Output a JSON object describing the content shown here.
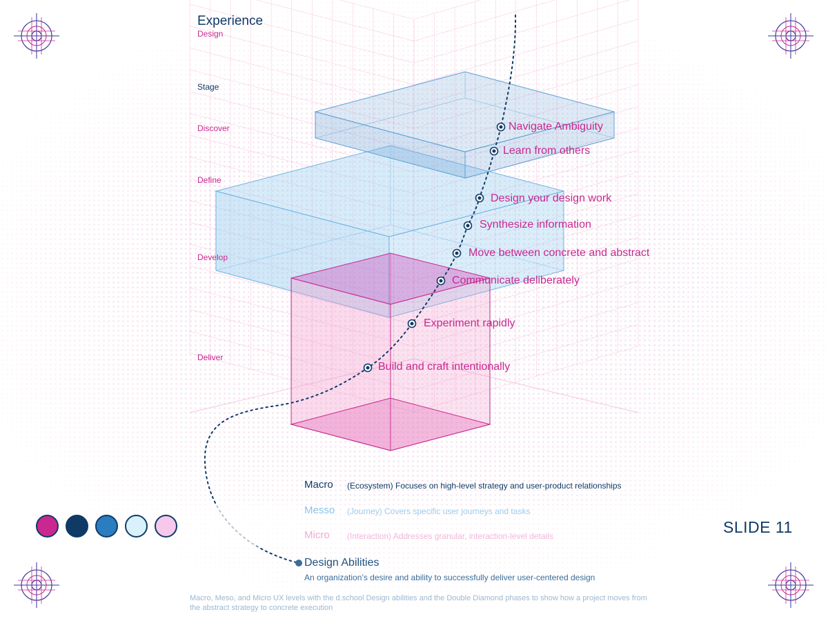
{
  "header": {
    "title": "Experience",
    "subtitle": "Design"
  },
  "stages": {
    "header": "Stage",
    "items": [
      "Discover",
      "Define",
      "Develop",
      "Deliver"
    ]
  },
  "abilities": [
    "Navigate Ambiguity",
    "Learn from others",
    "Design your design work",
    "Synthesize information",
    "Move between concrete and abstract",
    "Communicate deliberately",
    "Experiment rapidly",
    "Build and craft intentionally"
  ],
  "levels": [
    {
      "name": "Macro",
      "description": "(Ecosystem) Focuses on high-level strategy and user-product relationships",
      "color": "#0f3a66"
    },
    {
      "name": "Messo",
      "description": "(Journey) Covers specific user journeys and tasks",
      "color": "#8cc3ea"
    },
    {
      "name": "Micro",
      "description": "(Interaction) Addresses granular, interaction-level details",
      "color": "#f2a9d3"
    }
  ],
  "design_abilities": {
    "title": "Design Abilities",
    "description": "An organization’s desire and ability to successfully deliver user-centered design"
  },
  "caption": "Macro, Meso, and Micro UX levels with the d.school Design abilities and the Double Diamond phases to show how a project moves from the abstract strategy to concrete execution",
  "slide_label": "SLIDE 11",
  "palette": [
    "#c8288f",
    "#0f3a66",
    "#2a7dbf",
    "#d8f1fb",
    "#f6c8ec"
  ],
  "colors": {
    "magenta": "#c8288f",
    "navy": "#0f3a66",
    "blue": "#2a7dbf",
    "light_blue": "#8cc3ea",
    "pink": "#f2a9d3"
  },
  "icons": {
    "corner_marks": "crosshair-target-icon",
    "ability_markers": "target-dot-icon"
  }
}
